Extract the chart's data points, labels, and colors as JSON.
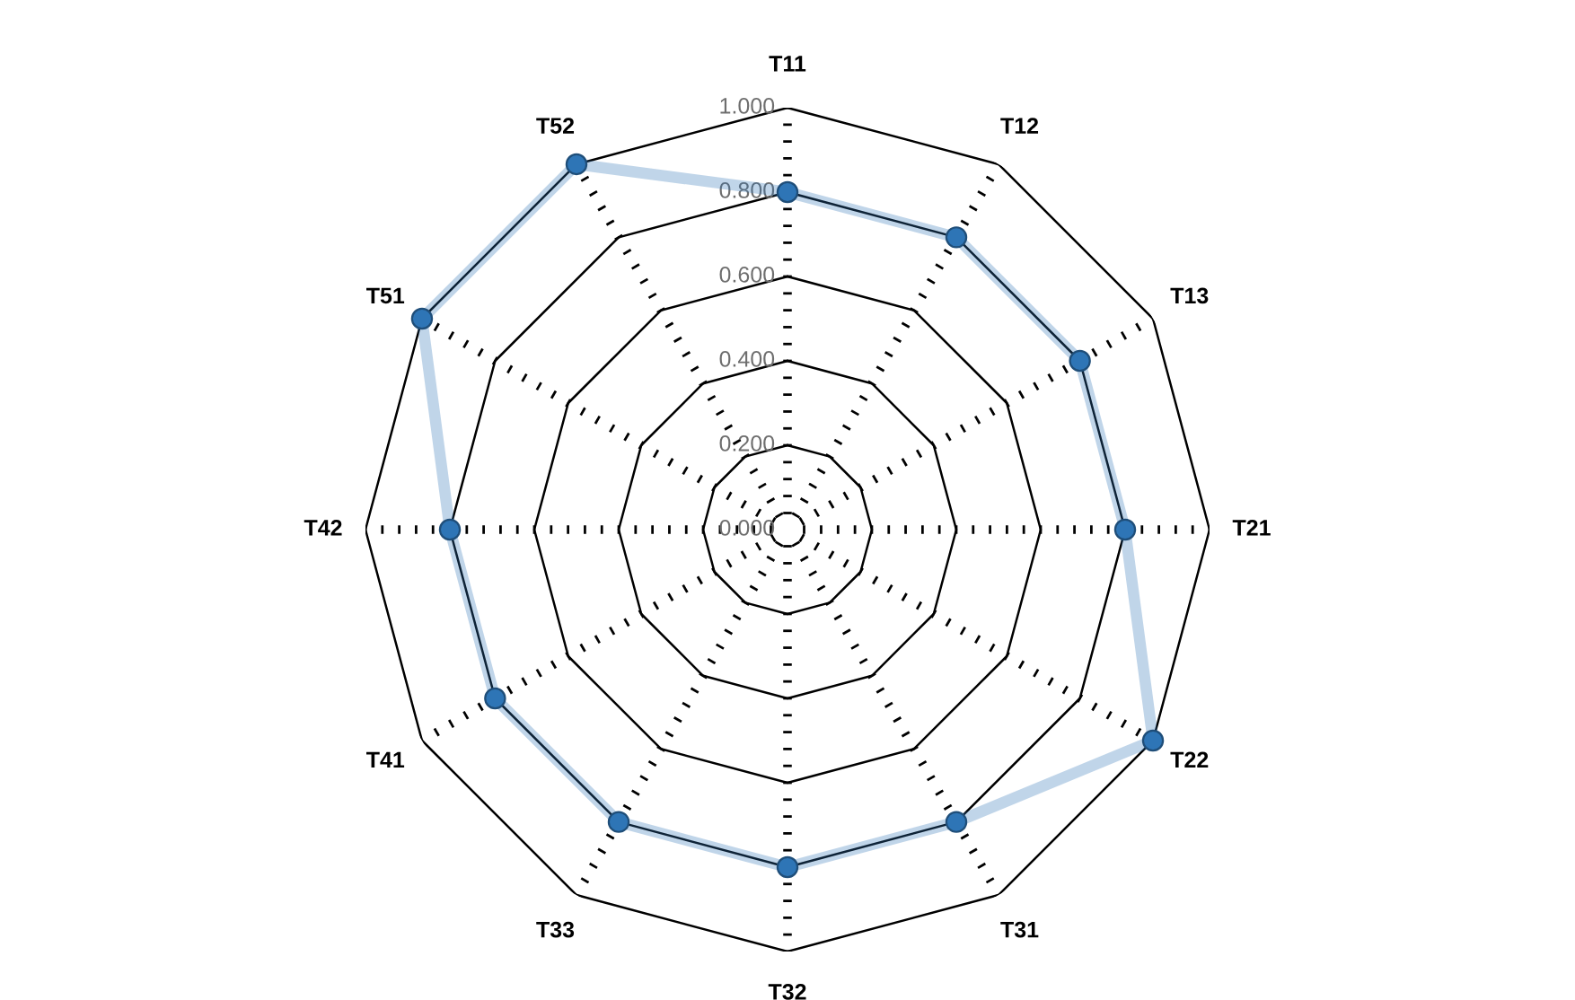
{
  "chart_data": {
    "type": "radar",
    "categories": [
      "T11",
      "T12",
      "T13",
      "T21",
      "T22",
      "T31",
      "T32",
      "T33",
      "T41",
      "T42",
      "T51",
      "T52"
    ],
    "series": [
      {
        "color": "#2e75b6",
        "values": [
          0.8,
          0.8,
          0.8,
          0.8,
          1.0,
          0.8,
          0.8,
          0.8,
          0.8,
          0.8,
          1.0,
          1.0
        ]
      }
    ],
    "ylim": [
      0,
      1
    ],
    "yticks": [
      {
        "value": 0,
        "label": "0.000"
      },
      {
        "value": 0.2,
        "label": "0.200"
      },
      {
        "value": 0.4,
        "label": "0.400"
      },
      {
        "value": 0.6,
        "label": "0.600"
      },
      {
        "value": 0.8,
        "label": "0.800"
      },
      {
        "value": 1.0,
        "label": "1.000"
      }
    ],
    "marker": "circle",
    "grid": true,
    "legend": false
  }
}
